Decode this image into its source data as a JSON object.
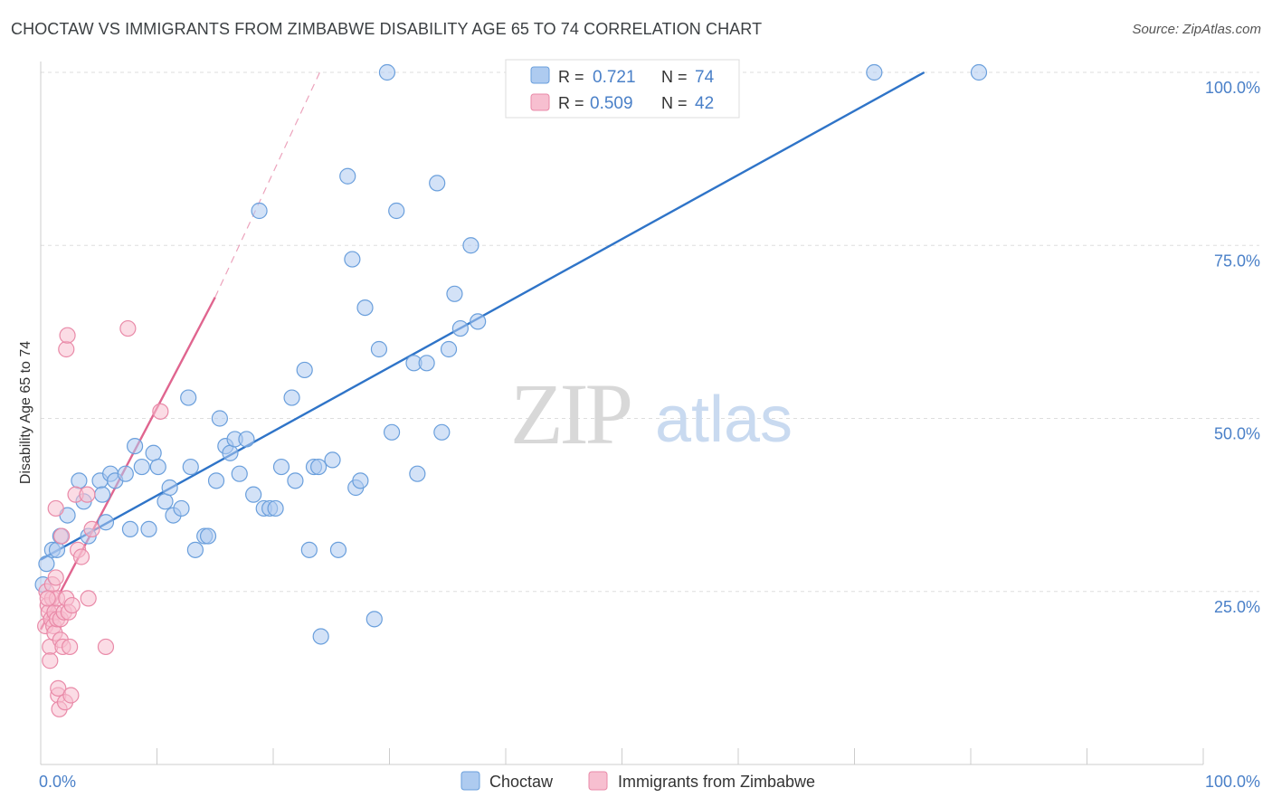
{
  "header": {
    "title": "CHOCTAW VS IMMIGRANTS FROM ZIMBABWE DISABILITY AGE 65 TO 74 CORRELATION CHART",
    "source": "Source: ZipAtlas.com"
  },
  "watermark": {
    "zip": "ZIP",
    "atlas": "atlas"
  },
  "colors": {
    "blue_fill": "#aecbf0",
    "blue_stroke": "#6a9fdc",
    "blue_line": "#2f74c8",
    "pink_fill": "#f7bfd0",
    "pink_stroke": "#e98aa8",
    "pink_line": "#e0658f",
    "tick_label": "#4a80c8",
    "grid": "#dddddd"
  },
  "chart_data": {
    "type": "scatter",
    "ylabel": "Disability Age 65 to 74",
    "xlim": [
      0,
      100
    ],
    "ylim": [
      0,
      100
    ],
    "x_tick_labels": [
      {
        "value": 0,
        "label": "0.0%"
      },
      {
        "value": 100,
        "label": "100.0%"
      }
    ],
    "y_tick_labels": [
      {
        "value": 25,
        "label": "25.0%"
      },
      {
        "value": 50,
        "label": "50.0%"
      },
      {
        "value": 75,
        "label": "75.0%"
      },
      {
        "value": 100,
        "label": "100.0%"
      }
    ],
    "grid": true,
    "legend_position": "top-center",
    "stats": [
      {
        "series": "Choctaw",
        "r_label": "R =",
        "r": "0.721",
        "n_label": "N =",
        "n": "74"
      },
      {
        "series": "Immigrants from Zimbabwe",
        "r_label": "R =",
        "r": "0.509",
        "n_label": "N =",
        "n": "42"
      }
    ],
    "series": [
      {
        "name": "Choctaw",
        "color": "blue",
        "trend": {
          "x0": 0,
          "y0": 29.6,
          "x1": 76,
          "y1": 100
        },
        "points": [
          [
            0.2,
            26
          ],
          [
            0.5,
            29
          ],
          [
            1.0,
            31
          ],
          [
            1.4,
            31
          ],
          [
            1.7,
            33
          ],
          [
            2.3,
            36
          ],
          [
            3.3,
            41
          ],
          [
            3.7,
            38
          ],
          [
            4.1,
            33
          ],
          [
            5.1,
            41
          ],
          [
            5.3,
            39
          ],
          [
            5.6,
            35
          ],
          [
            6.0,
            42
          ],
          [
            6.4,
            41
          ],
          [
            7.3,
            42
          ],
          [
            7.7,
            34
          ],
          [
            8.1,
            46
          ],
          [
            8.7,
            43
          ],
          [
            9.3,
            34
          ],
          [
            9.7,
            45
          ],
          [
            10.1,
            43
          ],
          [
            10.7,
            38
          ],
          [
            11.1,
            40
          ],
          [
            11.4,
            36
          ],
          [
            12.1,
            37
          ],
          [
            12.7,
            53
          ],
          [
            12.9,
            43
          ],
          [
            13.3,
            31
          ],
          [
            14.1,
            33
          ],
          [
            14.4,
            33
          ],
          [
            15.1,
            41
          ],
          [
            15.4,
            50
          ],
          [
            15.9,
            46
          ],
          [
            16.3,
            45
          ],
          [
            16.7,
            47
          ],
          [
            17.1,
            42
          ],
          [
            17.7,
            47
          ],
          [
            18.3,
            39
          ],
          [
            18.8,
            80
          ],
          [
            19.2,
            37
          ],
          [
            19.7,
            37
          ],
          [
            20.2,
            37
          ],
          [
            20.7,
            43
          ],
          [
            21.6,
            53
          ],
          [
            21.9,
            41
          ],
          [
            22.7,
            57
          ],
          [
            23.1,
            31
          ],
          [
            23.5,
            43
          ],
          [
            23.9,
            43
          ],
          [
            25.1,
            44
          ],
          [
            25.6,
            31
          ],
          [
            26.4,
            85
          ],
          [
            27.1,
            40
          ],
          [
            27.5,
            41
          ],
          [
            27.9,
            66
          ],
          [
            28.7,
            21
          ],
          [
            29.1,
            60
          ],
          [
            29.8,
            100
          ],
          [
            30.2,
            48
          ],
          [
            30.6,
            80
          ],
          [
            32.1,
            58
          ],
          [
            32.4,
            42
          ],
          [
            33.2,
            58
          ],
          [
            34.1,
            84
          ],
          [
            34.5,
            48
          ],
          [
            35.1,
            60
          ],
          [
            35.6,
            68
          ],
          [
            36.1,
            63
          ],
          [
            37.0,
            75
          ],
          [
            37.6,
            64
          ],
          [
            71.7,
            100
          ],
          [
            80.7,
            100
          ],
          [
            24.1,
            18.5
          ],
          [
            26.8,
            73
          ]
        ]
      },
      {
        "name": "Immigrants from Zimbabwe",
        "color": "pink",
        "trend": {
          "x0": 0,
          "y0": 19.5,
          "x1": 15,
          "y1": 67.5
        },
        "trend_dashed": {
          "x0": 15,
          "y0": 67.5,
          "x1": 24,
          "y1": 100
        },
        "points": [
          [
            0.4,
            20
          ],
          [
            0.5,
            25
          ],
          [
            0.6,
            23
          ],
          [
            0.7,
            22
          ],
          [
            0.8,
            17
          ],
          [
            0.8,
            15
          ],
          [
            0.9,
            21
          ],
          [
            1.0,
            24
          ],
          [
            1.0,
            26
          ],
          [
            1.1,
            20
          ],
          [
            1.2,
            19
          ],
          [
            1.2,
            22
          ],
          [
            1.3,
            27
          ],
          [
            1.3,
            37
          ],
          [
            1.4,
            21
          ],
          [
            1.4,
            24
          ],
          [
            1.5,
            10
          ],
          [
            1.5,
            11
          ],
          [
            1.6,
            8
          ],
          [
            1.7,
            18
          ],
          [
            1.7,
            21
          ],
          [
            1.8,
            33
          ],
          [
            1.9,
            17
          ],
          [
            2.0,
            22
          ],
          [
            2.1,
            9
          ],
          [
            2.2,
            24
          ],
          [
            2.2,
            60
          ],
          [
            2.3,
            62
          ],
          [
            2.4,
            22
          ],
          [
            2.5,
            17
          ],
          [
            2.6,
            10
          ],
          [
            2.7,
            23
          ],
          [
            3.0,
            39
          ],
          [
            3.2,
            31
          ],
          [
            3.5,
            30
          ],
          [
            4.0,
            39
          ],
          [
            4.1,
            24
          ],
          [
            4.4,
            34
          ],
          [
            5.6,
            17
          ],
          [
            7.5,
            63
          ],
          [
            10.3,
            51
          ],
          [
            0.6,
            24
          ]
        ]
      }
    ]
  }
}
